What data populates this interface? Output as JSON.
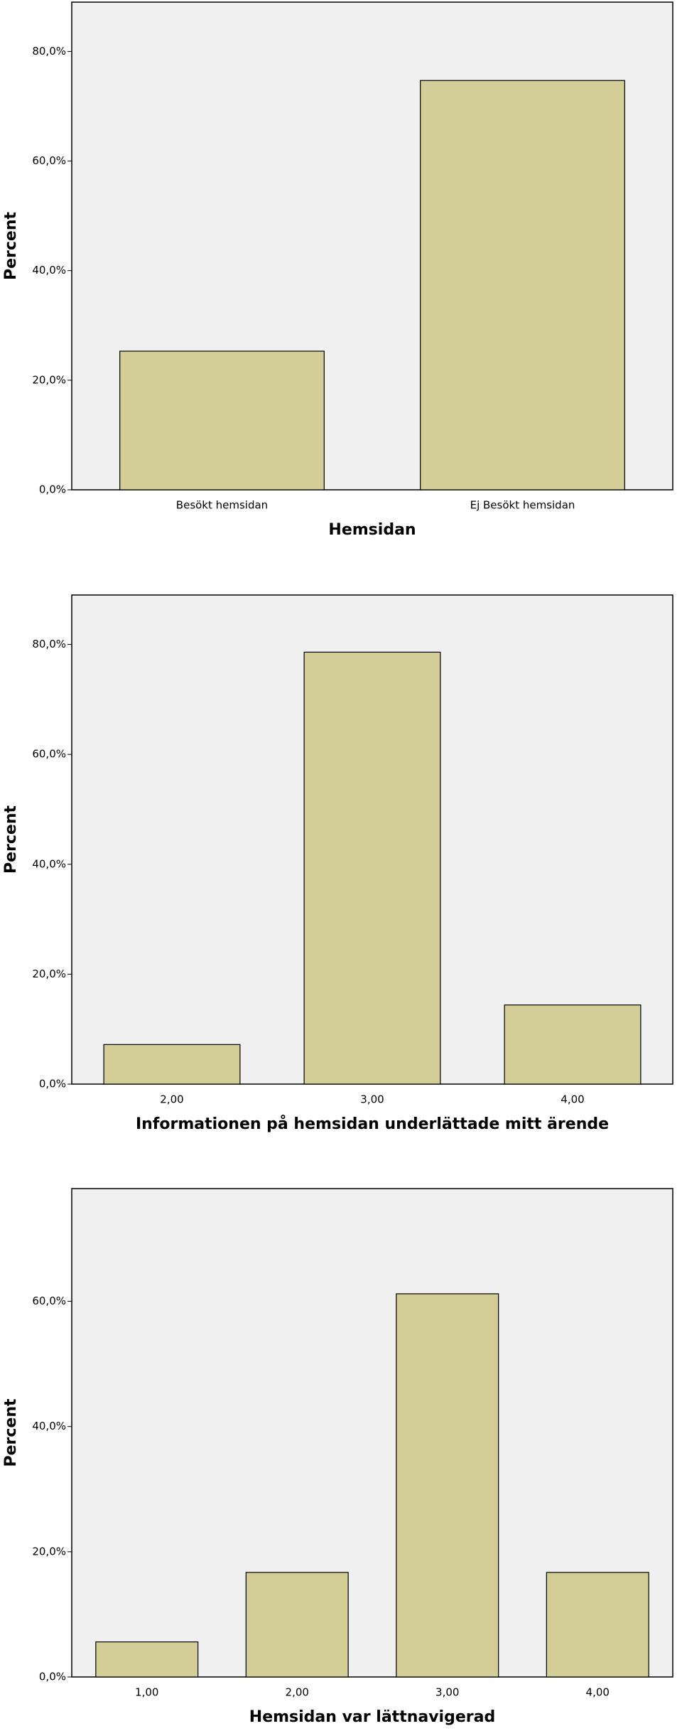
{
  "chart_data": [
    {
      "type": "bar",
      "categories": [
        "Besökt hemsidan",
        "Ej Besökt hemsidan"
      ],
      "values": [
        25.3,
        74.7
      ],
      "color": "#d3ce97",
      "xlabel": "Hemsidan",
      "ylabel": "Percent",
      "ylim": [
        0,
        89
      ],
      "yticks": [
        {
          "value": 0,
          "label": "0,0%"
        },
        {
          "value": 20,
          "label": "20,0%"
        },
        {
          "value": 40,
          "label": "40,0%"
        },
        {
          "value": 60,
          "label": "60,0%"
        },
        {
          "value": 80,
          "label": "80,0%"
        }
      ]
    },
    {
      "type": "bar",
      "categories": [
        "2,00",
        "3,00",
        "4,00"
      ],
      "values": [
        7.2,
        78.6,
        14.4
      ],
      "color": "#d3ce97",
      "xlabel": "Informationen på hemsidan underlättade mitt ärende",
      "ylabel": "Percent",
      "ylim": [
        0,
        89
      ],
      "yticks": [
        {
          "value": 0,
          "label": "0,0%"
        },
        {
          "value": 20,
          "label": "20,0%"
        },
        {
          "value": 40,
          "label": "40,0%"
        },
        {
          "value": 60,
          "label": "60,0%"
        },
        {
          "value": 80,
          "label": "80,0%"
        }
      ]
    },
    {
      "type": "bar",
      "categories": [
        "1,00",
        "2,00",
        "3,00",
        "4,00"
      ],
      "values": [
        5.6,
        16.7,
        61.2,
        16.7
      ],
      "color": "#d3ce97",
      "xlabel": "Hemsidan var lättnavigerad",
      "ylabel": "Percent",
      "ylim": [
        0,
        78
      ],
      "yticks": [
        {
          "value": 0,
          "label": "0,0%"
        },
        {
          "value": 20,
          "label": "20,0%"
        },
        {
          "value": 40,
          "label": "40,0%"
        },
        {
          "value": 60,
          "label": "60,0%"
        }
      ]
    }
  ]
}
